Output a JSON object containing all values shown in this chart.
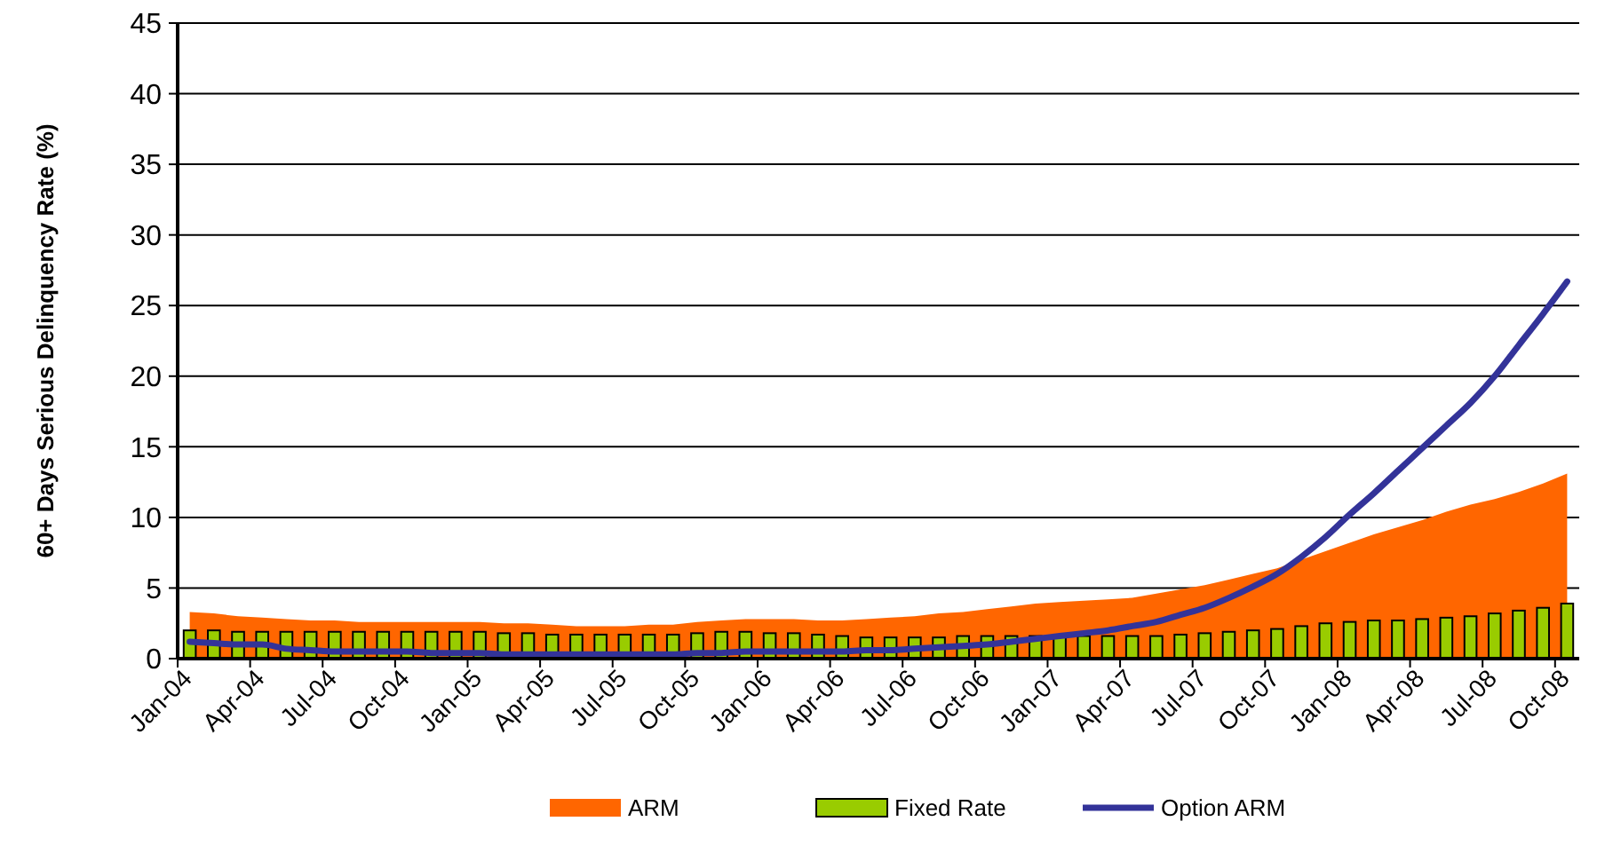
{
  "chart_data": {
    "type": "bar",
    "ylabel": "60+ Days Serious Delinquency Rate (%)",
    "categories": [
      "Jan-04",
      null,
      null,
      "Apr-04",
      null,
      null,
      "Jul-04",
      null,
      null,
      "Oct-04",
      null,
      null,
      "Jan-05",
      null,
      null,
      "Apr-05",
      null,
      null,
      "Jul-05",
      null,
      null,
      "Oct-05",
      null,
      null,
      "Jan-06",
      null,
      null,
      "Apr-06",
      null,
      null,
      "Jul-06",
      null,
      null,
      "Oct-06",
      null,
      null,
      "Jan-07",
      null,
      null,
      "Apr-07",
      null,
      null,
      "Jul-07",
      null,
      null,
      "Oct-07",
      null,
      null,
      "Jan-08",
      null,
      null,
      "Apr-08",
      null,
      null,
      "Jul-08",
      null,
      null,
      "Oct-08"
    ],
    "ylim": [
      0,
      45
    ],
    "yticks": [
      0,
      5,
      10,
      15,
      20,
      25,
      30,
      35,
      40,
      45
    ],
    "grid": "y",
    "legend": "bottom",
    "series": [
      {
        "name": "ARM",
        "type": "area",
        "color": "#ff6600",
        "values": [
          3.3,
          3.2,
          3.0,
          2.9,
          2.8,
          2.7,
          2.7,
          2.6,
          2.6,
          2.6,
          2.6,
          2.6,
          2.6,
          2.5,
          2.5,
          2.4,
          2.3,
          2.3,
          2.3,
          2.4,
          2.4,
          2.6,
          2.7,
          2.8,
          2.8,
          2.8,
          2.7,
          2.7,
          2.8,
          2.9,
          3.0,
          3.2,
          3.3,
          3.5,
          3.7,
          3.9,
          4.0,
          4.1,
          4.2,
          4.3,
          4.6,
          4.9,
          5.2,
          5.6,
          6.0,
          6.4,
          7.0,
          7.6,
          8.2,
          8.8,
          9.3,
          9.8,
          10.4,
          10.9,
          11.3,
          11.8,
          12.4,
          13.1
        ]
      },
      {
        "name": "Fixed Rate",
        "color": "#99cc00",
        "values": [
          2.0,
          2.0,
          1.9,
          1.9,
          1.9,
          1.9,
          1.9,
          1.9,
          1.9,
          1.9,
          1.9,
          1.9,
          1.9,
          1.8,
          1.8,
          1.7,
          1.7,
          1.7,
          1.7,
          1.7,
          1.7,
          1.8,
          1.9,
          1.9,
          1.8,
          1.8,
          1.7,
          1.6,
          1.5,
          1.5,
          1.5,
          1.5,
          1.6,
          1.6,
          1.6,
          1.6,
          1.6,
          1.6,
          1.6,
          1.6,
          1.6,
          1.7,
          1.8,
          1.9,
          2.0,
          2.1,
          2.3,
          2.5,
          2.6,
          2.7,
          2.7,
          2.8,
          2.9,
          3.0,
          3.2,
          3.4,
          3.6,
          3.9
        ]
      },
      {
        "name": "Option ARM",
        "type": "line",
        "color": "#333399",
        "values": [
          1.2,
          1.1,
          1.0,
          1.0,
          0.7,
          0.6,
          0.5,
          0.5,
          0.5,
          0.5,
          0.4,
          0.4,
          0.4,
          0.3,
          0.3,
          0.3,
          0.3,
          0.3,
          0.3,
          0.3,
          0.3,
          0.4,
          0.4,
          0.5,
          0.5,
          0.5,
          0.5,
          0.5,
          0.6,
          0.6,
          0.7,
          0.8,
          0.9,
          1.0,
          1.2,
          1.4,
          1.6,
          1.8,
          2.0,
          2.3,
          2.6,
          3.1,
          3.6,
          4.3,
          5.1,
          6.0,
          7.2,
          8.6,
          10.2,
          11.7,
          13.3,
          14.9,
          16.5,
          18.1,
          20.0,
          22.2,
          24.4,
          26.7
        ]
      }
    ]
  }
}
